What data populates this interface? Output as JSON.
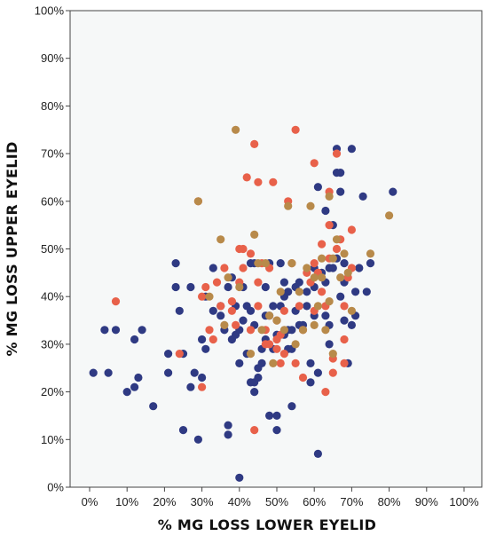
{
  "chart_data": {
    "type": "scatter",
    "title": "",
    "xlabel": "% MG LOSS LOWER EYELID",
    "ylabel": "% MG LOSS UPPER EYELID",
    "xlim": [
      0,
      100
    ],
    "ylim": [
      0,
      100
    ],
    "x_ticks": [
      "0%",
      "10%",
      "20%",
      "30%",
      "40%",
      "50%",
      "60%",
      "70%",
      "80%",
      "90%",
      "100%"
    ],
    "y_ticks": [
      "0%",
      "10%",
      "20%",
      "30%",
      "40%",
      "50%",
      "60%",
      "70%",
      "80%",
      "90%",
      "100%"
    ],
    "grid": false,
    "legend": "none",
    "colors": {
      "navy": "#2f3a83",
      "coral": "#e8614a",
      "olive": "#b88a4a",
      "plot_bg": "#f6f8f8",
      "border": "#444444"
    },
    "series": [
      {
        "color": "#2f3a83",
        "points": [
          [
            1,
            24
          ],
          [
            4,
            33
          ],
          [
            5,
            24
          ],
          [
            7,
            33
          ],
          [
            10,
            20
          ],
          [
            12,
            21
          ],
          [
            12,
            31
          ],
          [
            13,
            23
          ],
          [
            14,
            33
          ],
          [
            17,
            17
          ],
          [
            21,
            28
          ],
          [
            21,
            24
          ],
          [
            23,
            47
          ],
          [
            23,
            42
          ],
          [
            24,
            37
          ],
          [
            25,
            12
          ],
          [
            25,
            28
          ],
          [
            27,
            21
          ],
          [
            27,
            42
          ],
          [
            28,
            24
          ],
          [
            29,
            10
          ],
          [
            30,
            23
          ],
          [
            30,
            31
          ],
          [
            31,
            29
          ],
          [
            31,
            40
          ],
          [
            33,
            37
          ],
          [
            33,
            46
          ],
          [
            35,
            38
          ],
          [
            35,
            36
          ],
          [
            36,
            33
          ],
          [
            37,
            11
          ],
          [
            37,
            13
          ],
          [
            37,
            42
          ],
          [
            38,
            31
          ],
          [
            38,
            44
          ],
          [
            39,
            32
          ],
          [
            39,
            38
          ],
          [
            40,
            2
          ],
          [
            40,
            26
          ],
          [
            40,
            33
          ],
          [
            41,
            35
          ],
          [
            41,
            42
          ],
          [
            42,
            28
          ],
          [
            42,
            38
          ],
          [
            43,
            22
          ],
          [
            43,
            37
          ],
          [
            43,
            47
          ],
          [
            44,
            20
          ],
          [
            44,
            22
          ],
          [
            44,
            34
          ],
          [
            44,
            47
          ],
          [
            45,
            23
          ],
          [
            45,
            25
          ],
          [
            46,
            26
          ],
          [
            46,
            29
          ],
          [
            47,
            31
          ],
          [
            47,
            36
          ],
          [
            47,
            42
          ],
          [
            48,
            15
          ],
          [
            48,
            36
          ],
          [
            48,
            47
          ],
          [
            49,
            29
          ],
          [
            49,
            38
          ],
          [
            50,
            12
          ],
          [
            50,
            15
          ],
          [
            50,
            32
          ],
          [
            51,
            38
          ],
          [
            51,
            47
          ],
          [
            52,
            32
          ],
          [
            52,
            40
          ],
          [
            52,
            43
          ],
          [
            53,
            29
          ],
          [
            53,
            33
          ],
          [
            53,
            41
          ],
          [
            54,
            17
          ],
          [
            54,
            29
          ],
          [
            54,
            33
          ],
          [
            55,
            42
          ],
          [
            55,
            37
          ],
          [
            56,
            34
          ],
          [
            56,
            43
          ],
          [
            57,
            34
          ],
          [
            58,
            38
          ],
          [
            58,
            41
          ],
          [
            59,
            22
          ],
          [
            59,
            26
          ],
          [
            60,
            36
          ],
          [
            60,
            42
          ],
          [
            60,
            46
          ],
          [
            61,
            7
          ],
          [
            61,
            24
          ],
          [
            61,
            63
          ],
          [
            62,
            45
          ],
          [
            63,
            36
          ],
          [
            63,
            43
          ],
          [
            63,
            58
          ],
          [
            64,
            30
          ],
          [
            64,
            34
          ],
          [
            64,
            46
          ],
          [
            65,
            46
          ],
          [
            65,
            55
          ],
          [
            66,
            48
          ],
          [
            66,
            66
          ],
          [
            66,
            71
          ],
          [
            67,
            40
          ],
          [
            67,
            66
          ],
          [
            67,
            62
          ],
          [
            68,
            35
          ],
          [
            68,
            43
          ],
          [
            68,
            47
          ],
          [
            69,
            26
          ],
          [
            70,
            34
          ],
          [
            70,
            71
          ],
          [
            71,
            36
          ],
          [
            71,
            41
          ],
          [
            72,
            46
          ],
          [
            73,
            61
          ],
          [
            74,
            41
          ],
          [
            75,
            47
          ],
          [
            81,
            62
          ]
        ]
      },
      {
        "color": "#e8614a",
        "points": [
          [
            7,
            39
          ],
          [
            24,
            28
          ],
          [
            29,
            60
          ],
          [
            30,
            21
          ],
          [
            30,
            40
          ],
          [
            31,
            42
          ],
          [
            32,
            33
          ],
          [
            33,
            31
          ],
          [
            34,
            43
          ],
          [
            35,
            38
          ],
          [
            36,
            46
          ],
          [
            38,
            39
          ],
          [
            38,
            37
          ],
          [
            39,
            34
          ],
          [
            40,
            43
          ],
          [
            40,
            50
          ],
          [
            41,
            50
          ],
          [
            41,
            46
          ],
          [
            42,
            65
          ],
          [
            43,
            49
          ],
          [
            43,
            33
          ],
          [
            44,
            72
          ],
          [
            44,
            12
          ],
          [
            45,
            64
          ],
          [
            45,
            43
          ],
          [
            45,
            38
          ],
          [
            46,
            47
          ],
          [
            47,
            33
          ],
          [
            47,
            30
          ],
          [
            48,
            30
          ],
          [
            48,
            46
          ],
          [
            49,
            64
          ],
          [
            50,
            31
          ],
          [
            50,
            35
          ],
          [
            50,
            29
          ],
          [
            51,
            26
          ],
          [
            51,
            32
          ],
          [
            52,
            28
          ],
          [
            52,
            37
          ],
          [
            53,
            60
          ],
          [
            54,
            47
          ],
          [
            55,
            75
          ],
          [
            55,
            26
          ],
          [
            56,
            38
          ],
          [
            57,
            23
          ],
          [
            57,
            33
          ],
          [
            58,
            45
          ],
          [
            59,
            43
          ],
          [
            60,
            68
          ],
          [
            60,
            47
          ],
          [
            60,
            37
          ],
          [
            61,
            45
          ],
          [
            62,
            51
          ],
          [
            62,
            41
          ],
          [
            63,
            20
          ],
          [
            63,
            38
          ],
          [
            64,
            62
          ],
          [
            64,
            55
          ],
          [
            64,
            48
          ],
          [
            65,
            27
          ],
          [
            65,
            24
          ],
          [
            66,
            50
          ],
          [
            66,
            70
          ],
          [
            67,
            52
          ],
          [
            68,
            31
          ],
          [
            68,
            26
          ],
          [
            68,
            38
          ],
          [
            69,
            44
          ],
          [
            70,
            46
          ],
          [
            70,
            54
          ]
        ]
      },
      {
        "color": "#b88a4a",
        "points": [
          [
            29,
            60
          ],
          [
            32,
            40
          ],
          [
            35,
            52
          ],
          [
            36,
            34
          ],
          [
            37,
            44
          ],
          [
            39,
            75
          ],
          [
            40,
            42
          ],
          [
            43,
            28
          ],
          [
            44,
            53
          ],
          [
            45,
            47
          ],
          [
            46,
            33
          ],
          [
            47,
            47
          ],
          [
            48,
            36
          ],
          [
            49,
            26
          ],
          [
            50,
            35
          ],
          [
            51,
            41
          ],
          [
            52,
            33
          ],
          [
            53,
            59
          ],
          [
            54,
            47
          ],
          [
            55,
            30
          ],
          [
            56,
            41
          ],
          [
            57,
            33
          ],
          [
            58,
            46
          ],
          [
            59,
            59
          ],
          [
            60,
            44
          ],
          [
            60,
            34
          ],
          [
            61,
            38
          ],
          [
            62,
            48
          ],
          [
            62,
            44
          ],
          [
            63,
            33
          ],
          [
            64,
            61
          ],
          [
            64,
            39
          ],
          [
            65,
            28
          ],
          [
            65,
            48
          ],
          [
            66,
            52
          ],
          [
            67,
            44
          ],
          [
            68,
            49
          ],
          [
            69,
            45
          ],
          [
            70,
            37
          ],
          [
            75,
            49
          ],
          [
            80,
            57
          ]
        ]
      }
    ]
  }
}
